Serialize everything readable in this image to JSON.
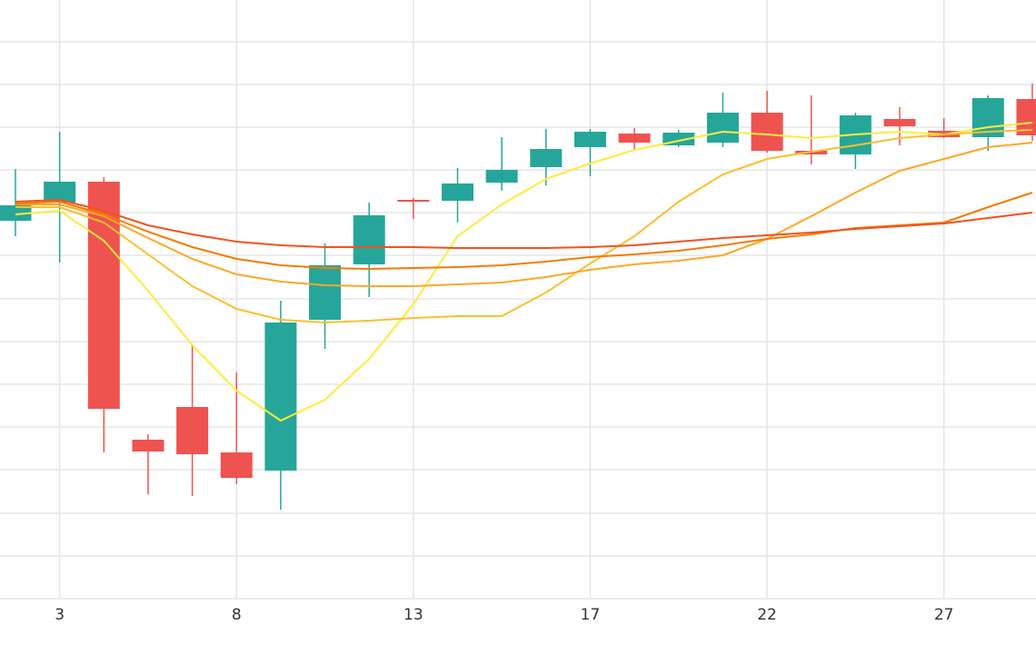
{
  "chart_data": {
    "type": "candlestick",
    "categories": [
      null,
      "3",
      null,
      null,
      null,
      "8",
      null,
      null,
      null,
      "13",
      null,
      null,
      null,
      "17",
      null,
      null,
      null,
      "22",
      null,
      null,
      null,
      "27",
      null,
      null
    ],
    "open": [
      416,
      436,
      459,
      175,
      211,
      161,
      141,
      307,
      368,
      439,
      438,
      458,
      475,
      497,
      512,
      499,
      502,
      535,
      493,
      489,
      528,
      515,
      508,
      550
    ],
    "high": [
      473,
      514,
      464,
      181,
      280,
      249,
      328,
      391,
      436,
      441,
      474,
      508,
      517,
      517,
      518,
      516,
      557,
      559,
      554,
      535,
      541,
      529,
      554,
      567
    ],
    "low": [
      399,
      370,
      161,
      115,
      113,
      126,
      98,
      275,
      332,
      418,
      414,
      449,
      455,
      465,
      494,
      497,
      497,
      491,
      478,
      473,
      499,
      507,
      493,
      504
    ],
    "close": [
      433,
      459,
      209,
      162,
      159,
      133,
      304,
      367,
      422,
      437,
      457,
      472,
      495,
      514,
      502,
      513,
      535,
      493,
      489,
      532,
      520,
      508,
      551,
      510
    ],
    "up_color": "#26a69a",
    "down_color": "#ef5350",
    "lines": [
      {
        "color": "#ffeb3b",
        "values": [
          423,
          427,
          394,
          339,
          279,
          229,
          196,
          219,
          264,
          324,
          399,
          434,
          462,
          479,
          494,
          504,
          514,
          511,
          507,
          511,
          514,
          511,
          519,
          524
        ]
      },
      {
        "color": "#fbc02d",
        "values": [
          431,
          431,
          414,
          379,
          344,
          319,
          307,
          304,
          306,
          309,
          311,
          311,
          337,
          369,
          399,
          437,
          467,
          484,
          492,
          499,
          507,
          511,
          514,
          516
        ]
      },
      {
        "color": "#ffa726",
        "values": [
          434,
          434,
          421,
          397,
          374,
          357,
          349,
          345,
          344,
          344,
          346,
          348,
          354,
          362,
          368,
          372,
          378,
          396,
          421,
          447,
          471,
          484,
          497,
          502
        ]
      },
      {
        "color": "#f57c00",
        "values": [
          435,
          437,
          423,
          404,
          387,
          374,
          367,
          364,
          363,
          364,
          365,
          367,
          371,
          376,
          379,
          383,
          389,
          396,
          401,
          408,
          411,
          414,
          431,
          447
        ]
      },
      {
        "color": "#f4511e",
        "values": [
          437,
          439,
          427,
          411,
          401,
          393,
          389,
          387,
          387,
          387,
          386,
          386,
          386,
          387,
          389,
          393,
          397,
          400,
          403,
          407,
          410,
          413,
          419,
          425
        ]
      }
    ],
    "ylim": [
      0,
      659
    ],
    "yticks": [
      0,
      47,
      94,
      142,
      189,
      236,
      283,
      330,
      378,
      425,
      472,
      519,
      566,
      613
    ],
    "grid": true
  }
}
